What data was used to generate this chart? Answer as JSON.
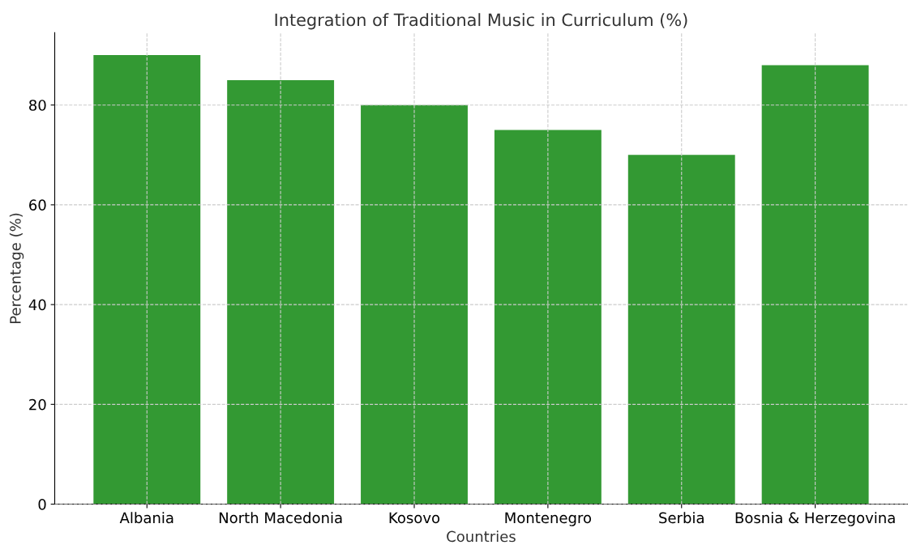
{
  "chart_data": {
    "type": "bar",
    "title": "Integration of Traditional Music in Curriculum (%)",
    "xlabel": "Countries",
    "ylabel": "Percentage (%)",
    "categories": [
      "Albania",
      "North Macedonia",
      "Kosovo",
      "Montenegro",
      "Serbia",
      "Bosnia & Herzegovina"
    ],
    "values": [
      90,
      85,
      80,
      75,
      70,
      88
    ],
    "color": "#339933",
    "ylim": [
      0,
      94.5
    ],
    "yticks": [
      0,
      20,
      40,
      60,
      80
    ],
    "grid": true
  }
}
